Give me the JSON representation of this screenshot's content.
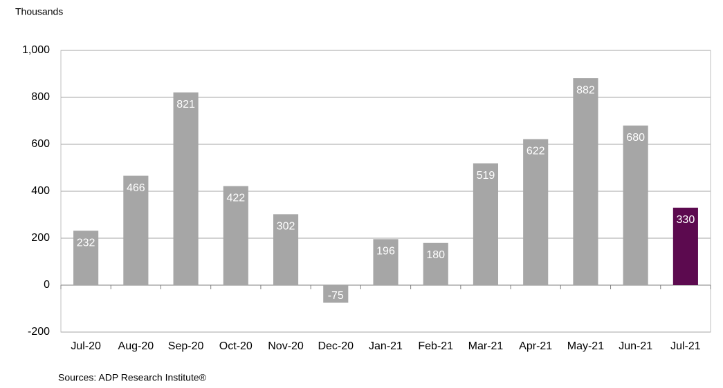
{
  "chart_data": {
    "type": "bar",
    "y_axis_label": "Thousands",
    "source": "Sources: ADP Research Institute®",
    "categories": [
      "Jul-20",
      "Aug-20",
      "Sep-20",
      "Oct-20",
      "Nov-20",
      "Dec-20",
      "Jan-21",
      "Feb-21",
      "Mar-21",
      "Apr-21",
      "May-21",
      "Jun-21",
      "Jul-21"
    ],
    "values": [
      232,
      466,
      821,
      422,
      302,
      -75,
      196,
      180,
      519,
      622,
      882,
      680,
      330
    ],
    "colors": [
      "#a6a6a6",
      "#a6a6a6",
      "#a6a6a6",
      "#a6a6a6",
      "#a6a6a6",
      "#a6a6a6",
      "#a6a6a6",
      "#a6a6a6",
      "#a6a6a6",
      "#a6a6a6",
      "#a6a6a6",
      "#a6a6a6",
      "#5c0a4f"
    ],
    "ylim": [
      -200,
      1000
    ],
    "yticks": [
      -200,
      0,
      200,
      400,
      600,
      800,
      {
        "value": 1000,
        "label": "1,000"
      }
    ],
    "grid": true
  }
}
